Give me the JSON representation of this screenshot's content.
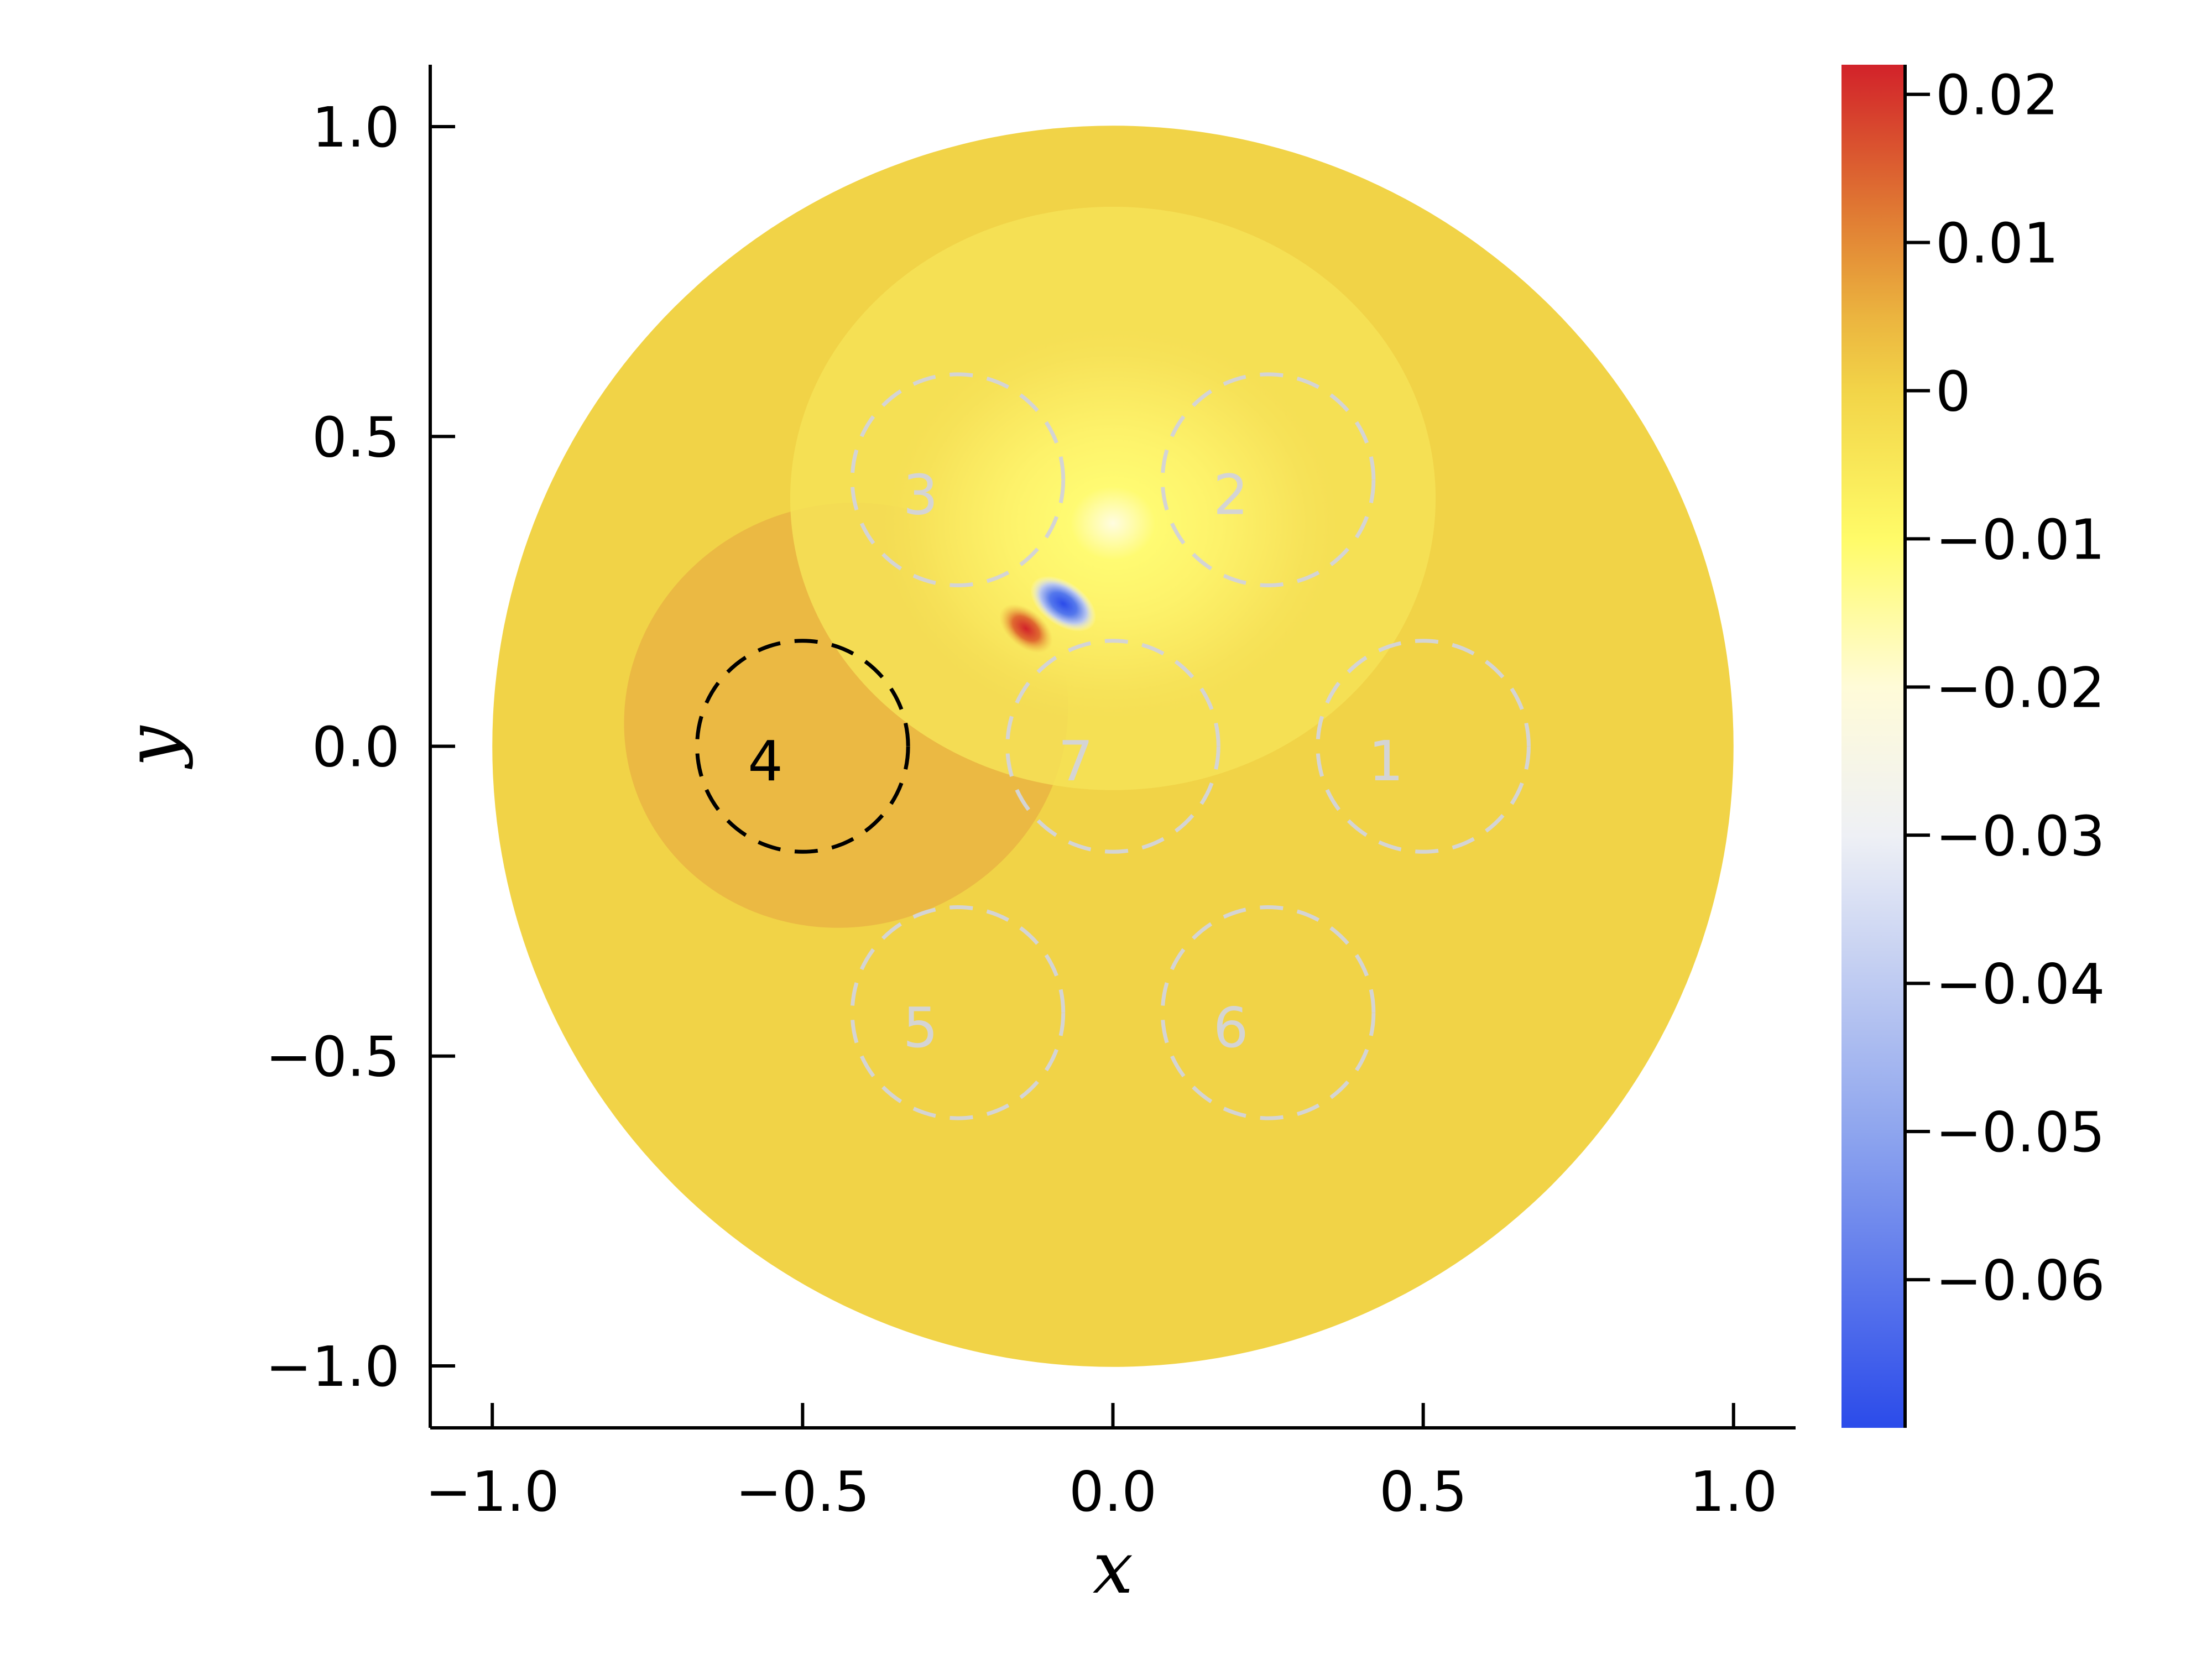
{
  "chart_data": {
    "type": "heatmap",
    "title": "",
    "xlabel": "x",
    "ylabel": "y",
    "xlim": [
      -1.1,
      1.1
    ],
    "ylim": [
      -1.1,
      1.1
    ],
    "x_ticks": [
      -1.0,
      -0.5,
      0.0,
      0.5,
      1.0
    ],
    "x_tick_labels": [
      "−1.0",
      "−0.5",
      "0.0",
      "0.5",
      "1.0"
    ],
    "y_ticks": [
      -1.0,
      -0.5,
      0.0,
      0.5,
      1.0
    ],
    "y_tick_labels": [
      "−1.0",
      "−0.5",
      "0.0",
      "0.5",
      "1.0"
    ],
    "grid": false,
    "domain": {
      "shape": "disk",
      "center": [
        0,
        0
      ],
      "radius": 1.0
    },
    "field_range": [
      -0.07,
      0.022
    ],
    "background_value": 0.0,
    "features": [
      {
        "kind": "positive-lobe",
        "center": [
          -0.43,
          0.05
        ],
        "peak": 0.004
      },
      {
        "kind": "negative-lobe",
        "center": [
          0.0,
          0.4
        ],
        "peak": -0.012
      },
      {
        "kind": "negative-spike",
        "center": [
          -0.08,
          0.23
        ],
        "peak": -0.065
      },
      {
        "kind": "positive-spike",
        "center": [
          -0.14,
          0.19
        ],
        "peak": 0.02
      }
    ],
    "circles": [
      {
        "label": "1",
        "center": [
          0.5,
          0.0
        ],
        "radius": 0.17,
        "highlight": false
      },
      {
        "label": "2",
        "center": [
          0.25,
          0.43
        ],
        "radius": 0.17,
        "highlight": false
      },
      {
        "label": "3",
        "center": [
          -0.25,
          0.43
        ],
        "radius": 0.17,
        "highlight": false
      },
      {
        "label": "4",
        "center": [
          -0.5,
          0.0
        ],
        "radius": 0.17,
        "highlight": true
      },
      {
        "label": "5",
        "center": [
          -0.25,
          -0.43
        ],
        "radius": 0.17,
        "highlight": false
      },
      {
        "label": "6",
        "center": [
          0.25,
          -0.43
        ],
        "radius": 0.17,
        "highlight": false
      },
      {
        "label": "7",
        "center": [
          0.0,
          0.0
        ],
        "radius": 0.17,
        "highlight": false
      }
    ],
    "colorbar": {
      "min": -0.07,
      "max": 0.022,
      "ticks": [
        0.02,
        0.01,
        0.0,
        -0.01,
        -0.02,
        -0.03,
        -0.04,
        -0.05,
        -0.06
      ],
      "tick_labels": [
        "0.02",
        "0.01",
        "0",
        "−0.01",
        "−0.02",
        "−0.03",
        "−0.04",
        "−0.05",
        "−0.06"
      ],
      "color_stops": [
        {
          "value": -0.07,
          "color": "#2b4bea"
        },
        {
          "value": -0.05,
          "color": "#8ea5ee"
        },
        {
          "value": -0.03,
          "color": "#eef0f5"
        },
        {
          "value": -0.02,
          "color": "#fffbd8"
        },
        {
          "value": -0.01,
          "color": "#fffb68"
        },
        {
          "value": 0.0,
          "color": "#f2d448"
        },
        {
          "value": 0.005,
          "color": "#ebb43f"
        },
        {
          "value": 0.012,
          "color": "#e07a33"
        },
        {
          "value": 0.022,
          "color": "#d2222a"
        }
      ]
    },
    "colors": {
      "background_field": "#f1d347",
      "positive_lobe": "#ebb943",
      "circle_dim": "#d4d4d4",
      "circle_highlight": "#000000"
    }
  }
}
